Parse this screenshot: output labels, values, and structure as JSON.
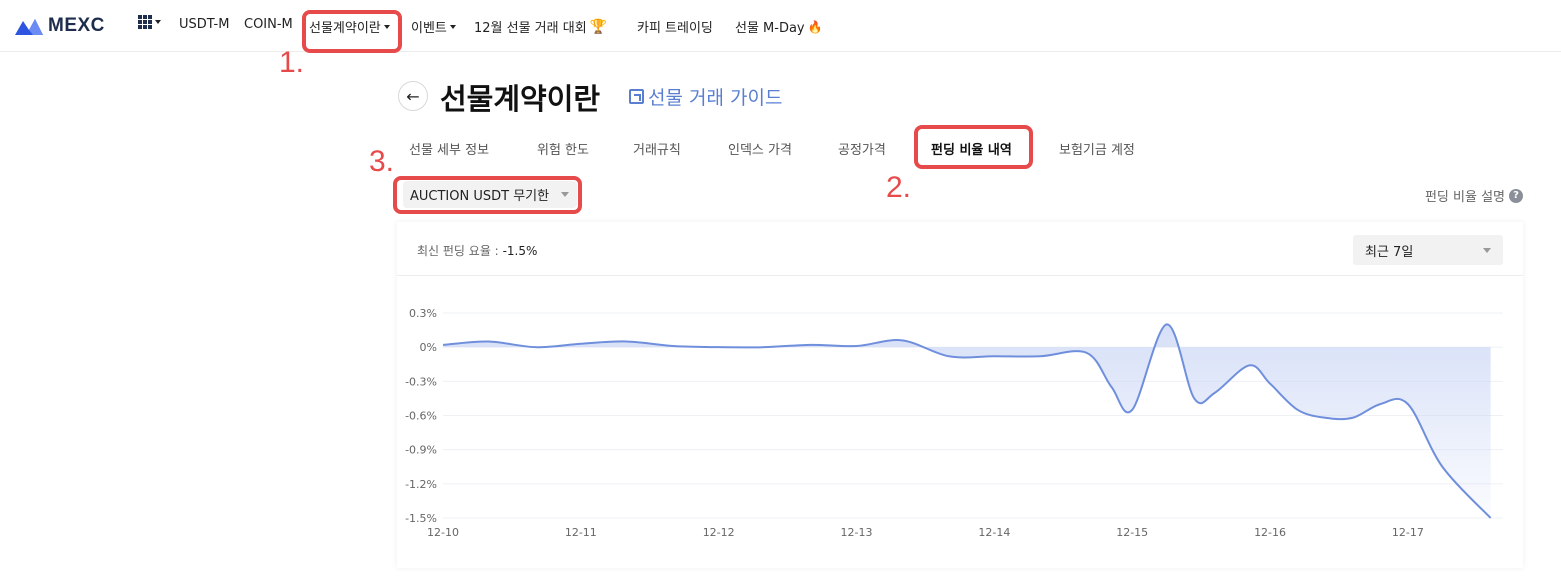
{
  "nav": {
    "logo_text": "MEXC",
    "items": [
      "USDT-M",
      "COIN-M",
      "선물계약이란",
      "이벤트",
      "12월 선물 거래 대회",
      "카피 트레이딩",
      "선물 M-Day"
    ]
  },
  "annotations": [
    "1.",
    "2.",
    "3."
  ],
  "header": {
    "title": "선물계약이란",
    "guide_link": "선물 거래 가이드"
  },
  "tabs": [
    "선물 세부 정보",
    "위험 한도",
    "거래규칙",
    "인덱스 가격",
    "공정가격",
    "펀딩 비율 내역",
    "보험기금 계정"
  ],
  "active_tab": "펀딩 비율 내역",
  "symbol_select": {
    "value": "AUCTION USDT 무기한"
  },
  "funding_explain": "펀딩 비율 설명",
  "card": {
    "latest_label": "최신 펀딩 요율 :",
    "latest_value": "-1.5%",
    "range_select": "최근 7일"
  },
  "colors": {
    "accent": "#5a7fd1",
    "line": "#6f8fdc",
    "annotation": "#e64a4a"
  },
  "chart_data": {
    "type": "area",
    "x_labels": [
      "12-10",
      "12-11",
      "12-12",
      "12-13",
      "12-14",
      "12-15",
      "12-16",
      "12-17"
    ],
    "y_ticks": [
      "0.3%",
      "0%",
      "-0.3%",
      "-0.6%",
      "-0.9%",
      "-1.2%",
      "-1.5%"
    ],
    "ylim": [
      -1.5,
      0.3
    ],
    "x": [
      0,
      0.33,
      0.67,
      1.0,
      1.33,
      1.67,
      2.0,
      2.33,
      2.67,
      3.0,
      3.33,
      3.67,
      4.0,
      4.33,
      4.67,
      4.85,
      5.0,
      5.25,
      5.45,
      5.6,
      5.85,
      6.0,
      6.2,
      6.4,
      6.6,
      6.8,
      7.0,
      7.25,
      7.6
    ],
    "y": [
      0.02,
      0.05,
      0.0,
      0.03,
      0.05,
      0.01,
      0.0,
      0.0,
      0.02,
      0.01,
      0.06,
      -0.08,
      -0.08,
      -0.08,
      -0.05,
      -0.35,
      -0.55,
      0.2,
      -0.45,
      -0.4,
      -0.16,
      -0.32,
      -0.55,
      -0.62,
      -0.62,
      -0.5,
      -0.5,
      -1.05,
      -1.5
    ]
  }
}
